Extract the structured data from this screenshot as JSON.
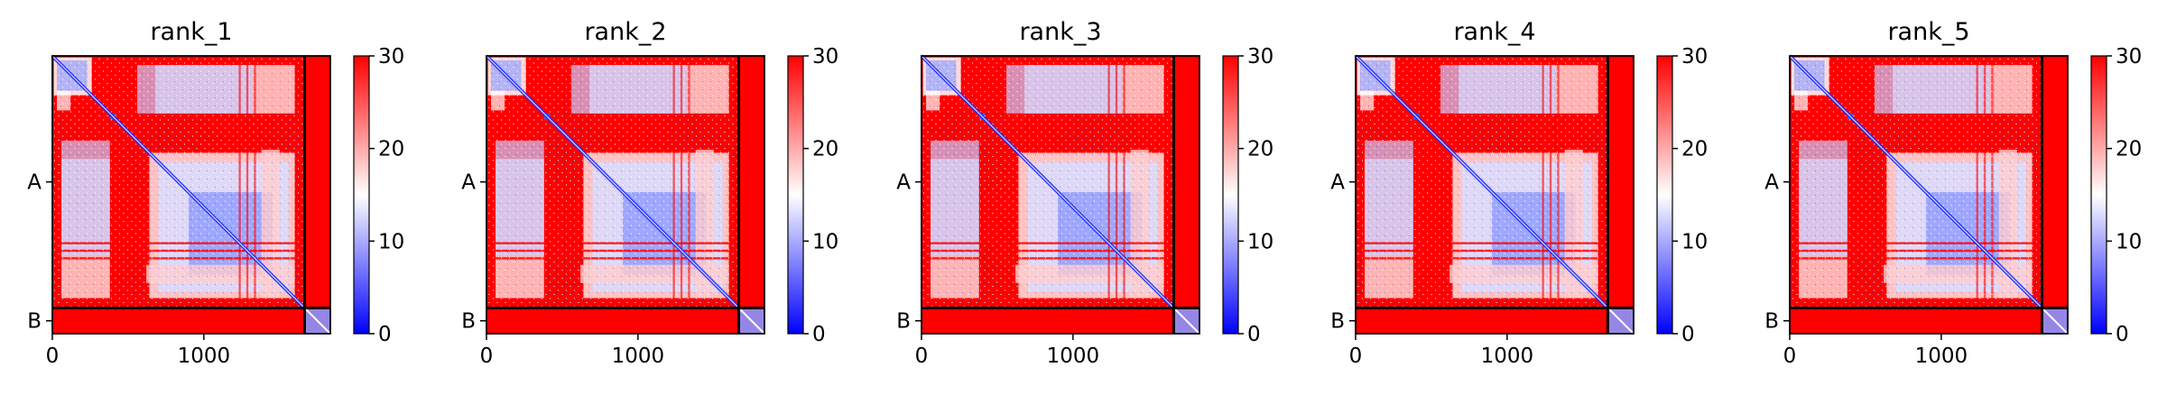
{
  "chart_data": [
    {
      "type": "heatmap",
      "title": "rank_1",
      "x_ticks": [
        "0",
        "1000"
      ],
      "x_tick_values": [
        0,
        1000
      ],
      "y_ticks": [
        "A",
        "B"
      ],
      "chains": [
        {
          "name": "A",
          "start": 0,
          "end": 1665
        },
        {
          "name": "B",
          "start": 1665,
          "end": 1835
        }
      ],
      "n_residues": 1835,
      "colorbar": {
        "ticks": [
          "0",
          "10",
          "20",
          "30"
        ],
        "tick_values": [
          0,
          10,
          20,
          30
        ],
        "range": [
          0,
          30
        ],
        "colormap": "bwr"
      }
    },
    {
      "type": "heatmap",
      "title": "rank_2",
      "x_ticks": [
        "0",
        "1000"
      ],
      "x_tick_values": [
        0,
        1000
      ],
      "y_ticks": [
        "A",
        "B"
      ],
      "chains": [
        {
          "name": "A",
          "start": 0,
          "end": 1665
        },
        {
          "name": "B",
          "start": 1665,
          "end": 1835
        }
      ],
      "n_residues": 1835,
      "colorbar": {
        "ticks": [
          "0",
          "10",
          "20",
          "30"
        ],
        "tick_values": [
          0,
          10,
          20,
          30
        ],
        "range": [
          0,
          30
        ],
        "colormap": "bwr"
      }
    },
    {
      "type": "heatmap",
      "title": "rank_3",
      "x_ticks": [
        "0",
        "1000"
      ],
      "x_tick_values": [
        0,
        1000
      ],
      "y_ticks": [
        "A",
        "B"
      ],
      "chains": [
        {
          "name": "A",
          "start": 0,
          "end": 1665
        },
        {
          "name": "B",
          "start": 1665,
          "end": 1835
        }
      ],
      "n_residues": 1835,
      "colorbar": {
        "ticks": [
          "0",
          "10",
          "20",
          "30"
        ],
        "tick_values": [
          0,
          10,
          20,
          30
        ],
        "range": [
          0,
          30
        ],
        "colormap": "bwr"
      }
    },
    {
      "type": "heatmap",
      "title": "rank_4",
      "x_ticks": [
        "0",
        "1000"
      ],
      "x_tick_values": [
        0,
        1000
      ],
      "y_ticks": [
        "A",
        "B"
      ],
      "chains": [
        {
          "name": "A",
          "start": 0,
          "end": 1665
        },
        {
          "name": "B",
          "start": 1665,
          "end": 1835
        }
      ],
      "n_residues": 1835,
      "colorbar": {
        "ticks": [
          "0",
          "10",
          "20",
          "30"
        ],
        "tick_values": [
          0,
          10,
          20,
          30
        ],
        "range": [
          0,
          30
        ],
        "colormap": "bwr"
      }
    },
    {
      "type": "heatmap",
      "title": "rank_5",
      "x_ticks": [
        "0",
        "1000"
      ],
      "x_tick_values": [
        0,
        1000
      ],
      "y_ticks": [
        "A",
        "B"
      ],
      "chains": [
        {
          "name": "A",
          "start": 0,
          "end": 1665
        },
        {
          "name": "B",
          "start": 1665,
          "end": 1835
        }
      ],
      "n_residues": 1835,
      "colorbar": {
        "ticks": [
          "0",
          "10",
          "20",
          "30"
        ],
        "tick_values": [
          0,
          10,
          20,
          30
        ],
        "range": [
          0,
          30
        ],
        "colormap": "bwr"
      }
    }
  ],
  "colors": {
    "high": "#ff0000",
    "mid": "#ffffff",
    "low": "#0000ff",
    "frame": "#000000"
  }
}
